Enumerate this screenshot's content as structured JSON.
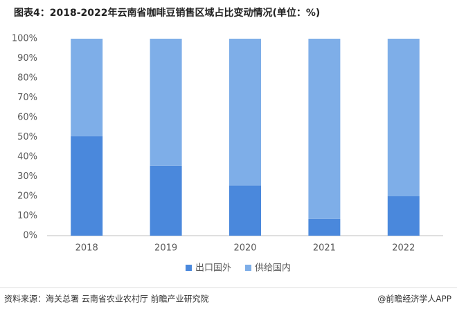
{
  "chart_data": {
    "type": "stacked_bar",
    "title": "图表4：2018-2022年云南省咖啡豆销售区域占比变动情况(单位：%)",
    "categories": [
      "2018",
      "2019",
      "2020",
      "2021",
      "2022"
    ],
    "series": [
      {
        "name": "出口国外",
        "color": "#4a88dc",
        "values": [
          50.5,
          35.5,
          25.5,
          8.5,
          20
        ]
      },
      {
        "name": "供给国内",
        "color": "#7eaee8",
        "values": [
          49.5,
          64.5,
          74.5,
          91.5,
          80
        ]
      }
    ],
    "ylim": [
      0,
      100
    ],
    "yticks": [
      {
        "value": 0,
        "label": "0%"
      },
      {
        "value": 10,
        "label": "10%"
      },
      {
        "value": 20,
        "label": "20%"
      },
      {
        "value": 30,
        "label": "30%"
      },
      {
        "value": 40,
        "label": "40%"
      },
      {
        "value": 50,
        "label": "50%"
      },
      {
        "value": 60,
        "label": "60%"
      },
      {
        "value": 70,
        "label": "70%"
      },
      {
        "value": 80,
        "label": "80%"
      },
      {
        "value": 90,
        "label": "90%"
      },
      {
        "value": 100,
        "label": "100%"
      }
    ],
    "grid": false,
    "legend": "bottom",
    "source": "资料来源：海关总署 云南省农业农村厅 前瞻产业研究院",
    "credit": "@前瞻经济学人APP"
  }
}
